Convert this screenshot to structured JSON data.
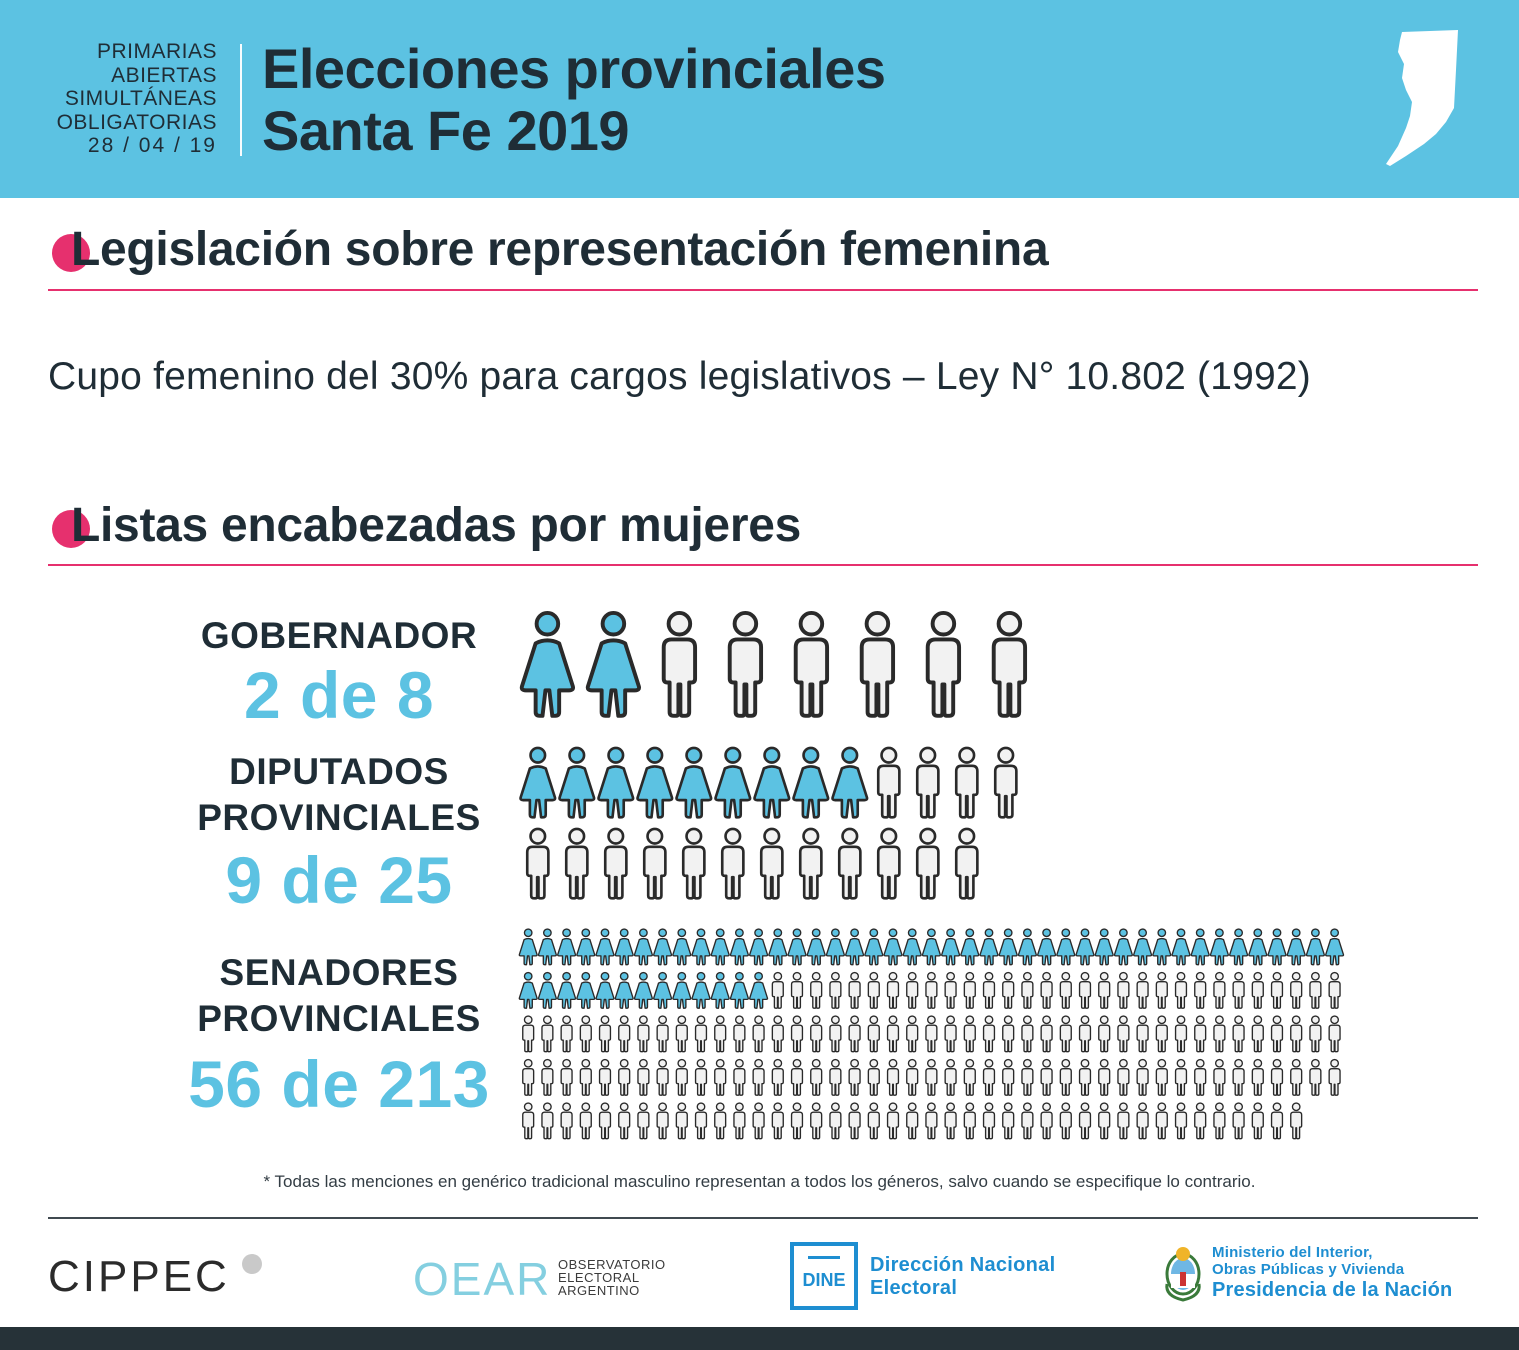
{
  "header": {
    "paso_lines": [
      "PRIMARIAS",
      "ABIERTAS",
      "SIMULTÁNEAS",
      "OBLIGATORIAS"
    ],
    "paso_date": "28 / 04 / 19",
    "title_line1": "Elecciones provinciales",
    "title_line2": "Santa Fe 2019"
  },
  "section1": {
    "initial": "L",
    "title": "Legislación sobre representación femenina",
    "body": "Cupo femenino del 30% para cargos legislativos – Ley N° 10.802 (1992)"
  },
  "section2": {
    "title": "Listas encabezadas por mujeres"
  },
  "categories": [
    {
      "label_lines": [
        "GOBERNADOR"
      ],
      "ratio": "2 de 8",
      "women": 2,
      "total": 8
    },
    {
      "label_lines": [
        "DIPUTADOS",
        "PROVINCIALES"
      ],
      "ratio": "9 de 25",
      "women": 9,
      "total": 25
    },
    {
      "label_lines": [
        "SENADORES",
        "PROVINCIALES"
      ],
      "ratio": "56 de 213",
      "women": 56,
      "total": 213
    }
  ],
  "note": "* Todas las menciones en genérico tradicional masculino representan a todos los géneros, salvo cuando se especifique lo contrario.",
  "logos": {
    "cippec": "CIPPEC",
    "oear": "OEAR",
    "oear_sub": [
      "OBSERVATORIO",
      "ELECTORAL",
      "ARGENTINO"
    ],
    "dine": "DINE",
    "dine_name": [
      "Dirección Nacional",
      "Electoral"
    ],
    "ministry": [
      "Ministerio del Interior,",
      "Obras Públicas y Vivienda"
    ],
    "presidency": "Presidencia de la Nación"
  },
  "colors": {
    "accent": "#5cc2e2",
    "pink": "#e6306e",
    "dark": "#1f2d36",
    "woman_fill": "#5cc2e2",
    "man_fill": "#f2f2f2"
  }
}
